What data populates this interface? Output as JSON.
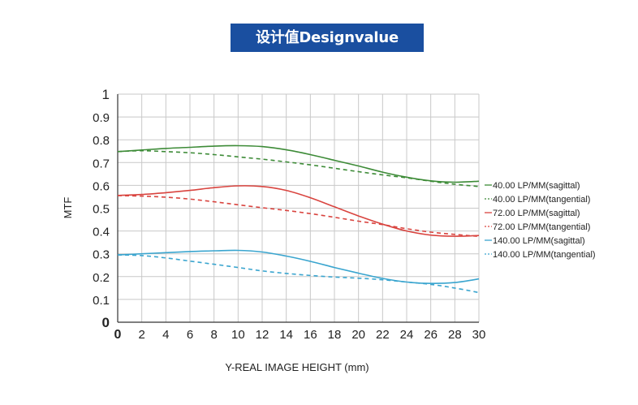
{
  "header": {
    "title": "设计值Designvalue"
  },
  "colors": {
    "banner": "#1a4fa0",
    "green": "#3d8b37",
    "red": "#d9443f",
    "blue": "#3aa5cf",
    "grid": "#c8c8c8"
  },
  "chart_data": {
    "type": "line",
    "xlabel": "Y-REAL IMAGE HEIGHT (mm)",
    "ylabel": "MTF",
    "xlim": [
      0,
      30
    ],
    "ylim": [
      0,
      1
    ],
    "x_ticks": [
      "0",
      "2",
      "4",
      "6",
      "8",
      "10",
      "12",
      "14",
      "16",
      "18",
      "20",
      "22",
      "24",
      "26",
      "28",
      "30"
    ],
    "y_ticks": [
      "0",
      "0.1",
      "0.2",
      "0.3",
      "0.4",
      "0.5",
      "0.6",
      "0.7",
      "0.8",
      "0.9",
      "1"
    ],
    "grid": true,
    "legend_position": "right",
    "x": [
      0,
      2,
      4,
      6,
      8,
      10,
      12,
      14,
      16,
      18,
      20,
      22,
      24,
      26,
      28,
      30
    ],
    "series": [
      {
        "name": "40.00 LP/MM(sagittal)",
        "color": "#3d8b37",
        "style": "solid",
        "values": [
          0.748,
          0.755,
          0.762,
          0.767,
          0.772,
          0.774,
          0.77,
          0.756,
          0.735,
          0.71,
          0.685,
          0.658,
          0.636,
          0.62,
          0.614,
          0.618
        ]
      },
      {
        "name": "40.00 LP/MM(tangential)",
        "color": "#3d8b37",
        "style": "dashed",
        "values": [
          0.748,
          0.752,
          0.748,
          0.743,
          0.735,
          0.725,
          0.715,
          0.703,
          0.69,
          0.675,
          0.66,
          0.646,
          0.633,
          0.618,
          0.605,
          0.595
        ]
      },
      {
        "name": "72.00 LP/MM(sagittal)",
        "color": "#d9443f",
        "style": "solid",
        "values": [
          0.556,
          0.56,
          0.568,
          0.578,
          0.59,
          0.598,
          0.595,
          0.578,
          0.546,
          0.506,
          0.466,
          0.43,
          0.4,
          0.382,
          0.377,
          0.38
        ]
      },
      {
        "name": "72.00 LP/MM(tangential)",
        "color": "#d9443f",
        "style": "dashed",
        "values": [
          0.555,
          0.553,
          0.548,
          0.54,
          0.528,
          0.515,
          0.502,
          0.49,
          0.476,
          0.46,
          0.443,
          0.428,
          0.41,
          0.395,
          0.385,
          0.376
        ]
      },
      {
        "name": "140.00 LP/MM(sagittal)",
        "color": "#3aa5cf",
        "style": "solid",
        "values": [
          0.295,
          0.3,
          0.305,
          0.31,
          0.313,
          0.315,
          0.308,
          0.29,
          0.267,
          0.24,
          0.215,
          0.192,
          0.176,
          0.17,
          0.174,
          0.19
        ]
      },
      {
        "name": "140.00 LP/MM(tangential)",
        "color": "#3aa5cf",
        "style": "dashed",
        "values": [
          0.295,
          0.292,
          0.282,
          0.268,
          0.254,
          0.24,
          0.225,
          0.214,
          0.205,
          0.198,
          0.193,
          0.186,
          0.176,
          0.166,
          0.15,
          0.13
        ]
      }
    ]
  }
}
